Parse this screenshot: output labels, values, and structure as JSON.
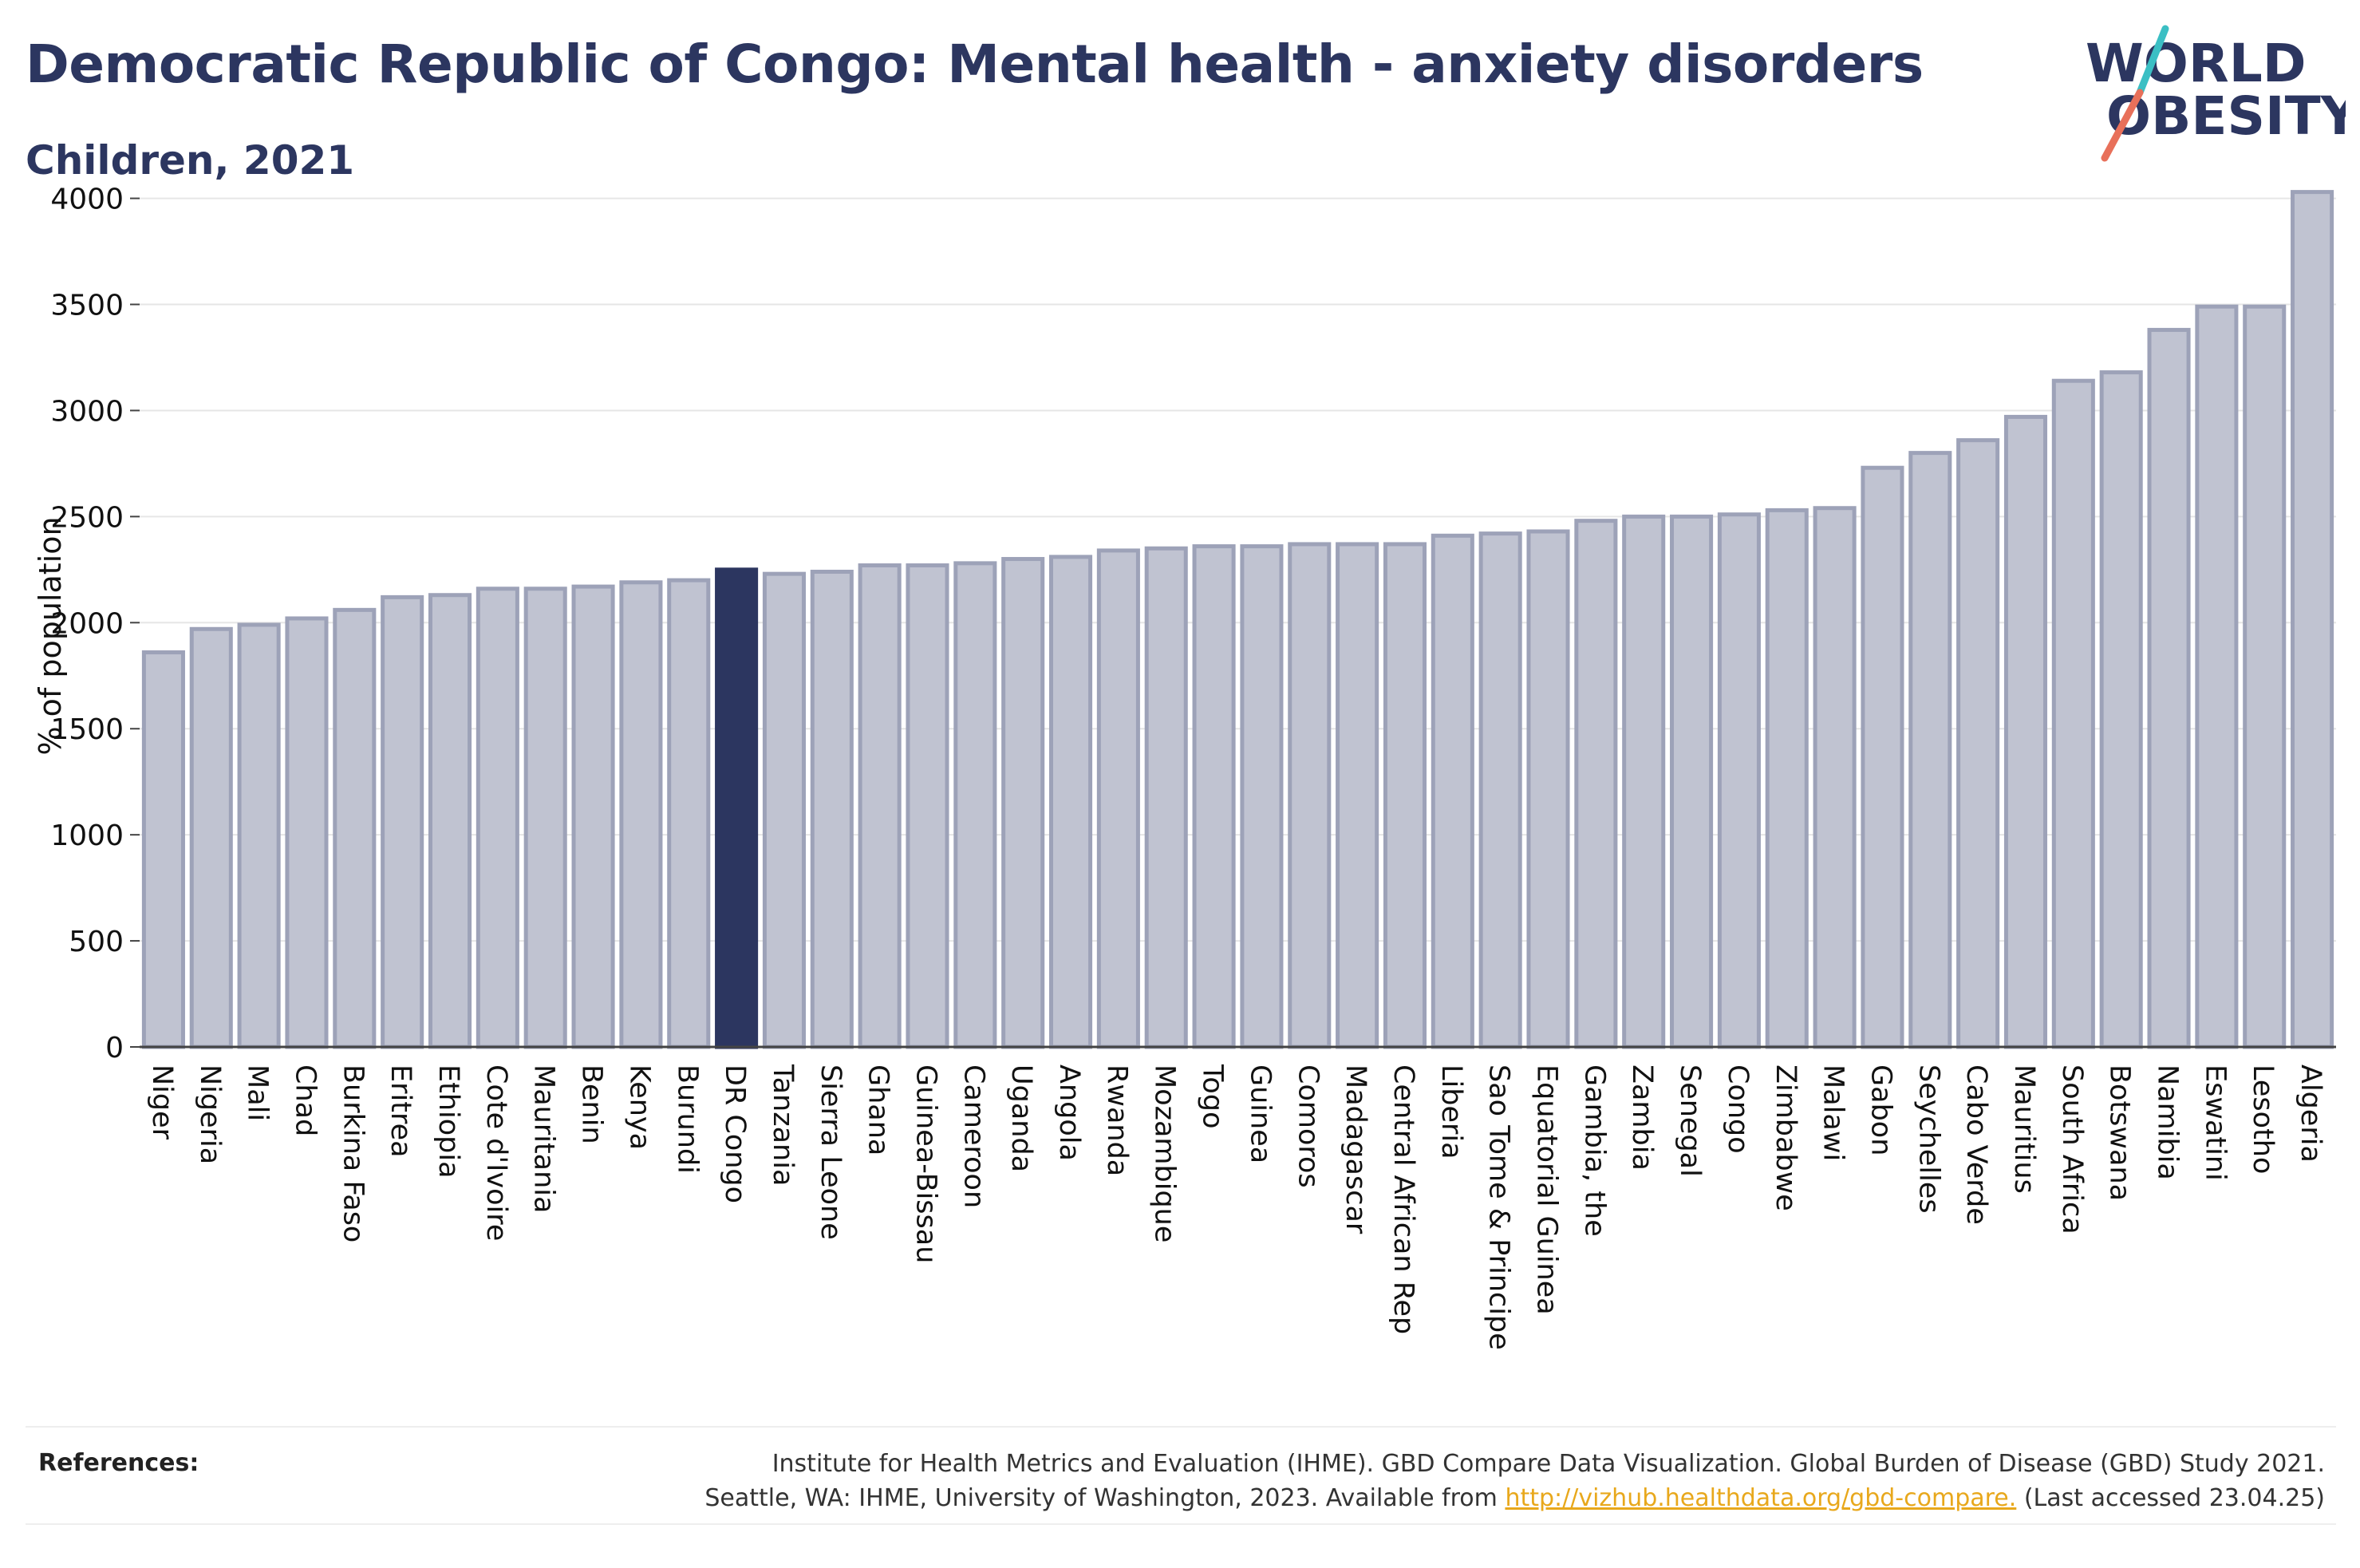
{
  "title": "Democratic Republic of Congo: Mental health - anxiety disorders",
  "subtitle": "Children, 2021",
  "logo": {
    "line1": "WORLD",
    "line2": "OBESITY"
  },
  "references": {
    "label": "References:",
    "line1": "Institute for Health Metrics and Evaluation (IHME). GBD Compare Data Visualization. Global Burden of Disease (GBD) Study 2021.",
    "line2_before": "Seattle, WA: IHME, University of Washington, 2023. Available from",
    "link": "http://vizhub.healthdata.org/gbd-compare.",
    "line2_after": "(Last accessed 23.04.25)"
  },
  "colors": {
    "title": "#2c3660",
    "bar_fill": "#c0c3d1",
    "bar_stroke": "#9da2b8",
    "highlight": "#2c3660",
    "link": "#e8a81c",
    "logo_teal": "#3bbfc4",
    "logo_coral": "#e8705a"
  },
  "chart_data": {
    "type": "bar",
    "ylabel": "% of population",
    "ylim": [
      0,
      4100
    ],
    "yticks": [
      0,
      500,
      1000,
      1500,
      2000,
      2500,
      3000,
      3500,
      4000
    ],
    "grid": true,
    "highlight": "DR Congo",
    "categories": [
      "Niger",
      "Nigeria",
      "Mali",
      "Chad",
      "Burkina Faso",
      "Eritrea",
      "Ethiopia",
      "Cote d'Ivoire",
      "Mauritania",
      "Benin",
      "Kenya",
      "Burundi",
      "DR Congo",
      "Tanzania",
      "Sierra Leone",
      "Ghana",
      "Guinea-Bissau",
      "Cameroon",
      "Uganda",
      "Angola",
      "Rwanda",
      "Mozambique",
      "Togo",
      "Guinea",
      "Comoros",
      "Madagascar",
      "Central African Rep",
      "Liberia",
      "Sao Tome & Principe",
      "Equatorial Guinea",
      "Gambia, the",
      "Zambia",
      "Senegal",
      "Congo",
      "Zimbabwe",
      "Malawi",
      "Gabon",
      "Seychelles",
      "Cabo Verde",
      "Mauritius",
      "South Africa",
      "Botswana",
      "Namibia",
      "Eswatini",
      "Lesotho",
      "Algeria"
    ],
    "values": [
      1860,
      1970,
      1990,
      2020,
      2060,
      2120,
      2130,
      2160,
      2160,
      2170,
      2190,
      2200,
      2250,
      2230,
      2240,
      2270,
      2270,
      2280,
      2300,
      2310,
      2340,
      2350,
      2360,
      2360,
      2370,
      2370,
      2370,
      2410,
      2420,
      2430,
      2480,
      2500,
      2500,
      2510,
      2530,
      2540,
      2730,
      2800,
      2860,
      2970,
      3140,
      3180,
      3380,
      3490,
      3490,
      4030
    ]
  }
}
